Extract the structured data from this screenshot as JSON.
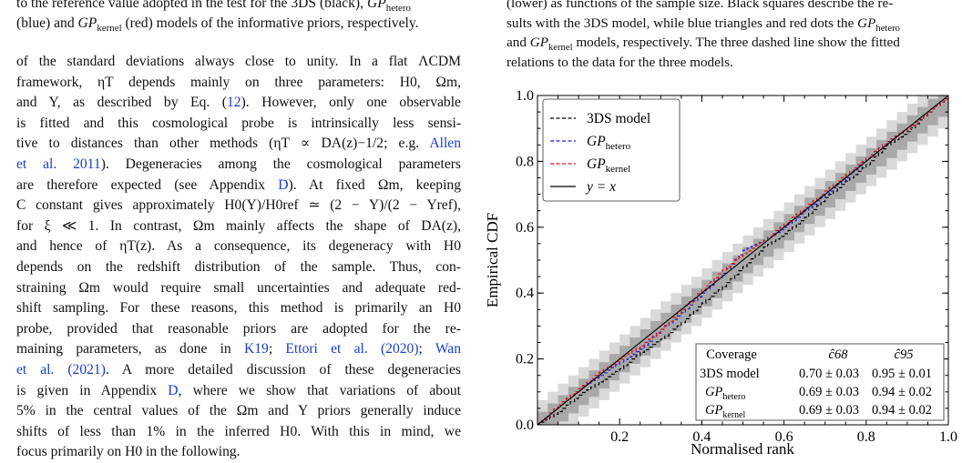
{
  "left_caption": {
    "line1": "to the reference value adopted in the test for the 3DS (black), ",
    "line1_gp": "GP",
    "line1_sub": "hetero",
    "line2_pre": "(blue) and ",
    "line2_gp": "GP",
    "line2_sub": "kernel",
    "line2_post": " (red) models of the informative priors, respectively."
  },
  "right_caption": {
    "line1": "(lower) as functions of the sample size. Black squares describe the re-",
    "line2_pre": "sults with the 3DS model, while blue triangles and red dots the ",
    "line2_gp": "GP",
    "line2_sub": "hetero",
    "line3_pre": "and ",
    "line3_gp": "GP",
    "line3_sub": "kernel",
    "line3_post": " models, respectively. The three dashed line show the fitted",
    "line4": "relations to the data for the three models."
  },
  "body": {
    "l1": "of the standard deviations always close to unity. In a flat ΛCDM",
    "l2": "framework, ηT depends mainly on three parameters: H0, Ωm,",
    "l3_pre": "and Y, as described by Eq. (",
    "l3_ref": "12",
    "l3_post": "). However, only one observable",
    "l4": "is fitted and this cosmological probe is intrinsically less sensi-",
    "l5_pre": "tive to distances than other methods (ηT ∝ DA(z)−1/2; e.g. ",
    "l5_ref": "Allen",
    "l6_ref": "et al. 2011",
    "l6_post": "). Degeneracies among the cosmological parameters",
    "l7_pre": "are therefore expected (see Appendix ",
    "l7_ref": "D",
    "l7_post": "). At fixed Ωm, keeping",
    "l8": "C constant gives approximately H0(Y)/H0ref ≃ (2 − Y)/(2 − Yref),",
    "l9": "for ξ ≪ 1. In contrast, Ωm mainly affects the shape of DA(z),",
    "l10": "and hence of ηT(z). As a consequence, its degeneracy with H0",
    "l11": "depends on the redshift distribution of the sample. Thus, con-",
    "l12": "straining Ωm would require small uncertainties and adequate red-",
    "l13": "shift sampling. For these reasons, this method is primarily an H0",
    "l14": "probe, provided that reasonable priors are adopted for the re-",
    "l15_pre": "maining parameters, as done in ",
    "l15_ref1": "K19",
    "l15_mid": "; ",
    "l15_ref2": "Ettori et al. (2020)",
    "l15_mid2": "; ",
    "l15_ref3": "Wan",
    "l16_ref": "et al. (2021)",
    "l16_post": ". A more detailed discussion of these degeneracies",
    "l17_pre": "is given in Appendix ",
    "l17_ref": "D",
    "l17_post": ", where we show that variations of about",
    "l18": "5% in the central values of the Ωm and Y priors generally induce",
    "l19": "shifts of less than 1% in the inferred H0. With this in mind, we",
    "l20": "focus primarily on H0 in the following."
  },
  "chart_data": {
    "type": "line",
    "xlabel": "Normalised rank",
    "ylabel": "Empirical CDF",
    "xlim": [
      0,
      1
    ],
    "ylim": [
      0,
      1
    ],
    "xticks": [
      "0.2",
      "0.4",
      "0.6",
      "0.8",
      "1.0"
    ],
    "yticks": [
      "0.0",
      "0.2",
      "0.4",
      "0.6",
      "0.8",
      "1.0"
    ],
    "legend_placement": "top-left",
    "series": [
      {
        "name": "3DS model",
        "color": "#000000",
        "style": "dashed",
        "x": [
          0.0,
          0.05,
          0.1,
          0.15,
          0.2,
          0.25,
          0.3,
          0.35,
          0.4,
          0.45,
          0.5,
          0.55,
          0.6,
          0.65,
          0.7,
          0.75,
          0.8,
          0.85,
          0.9,
          0.95,
          1.0
        ],
        "y": [
          0.0,
          0.04,
          0.09,
          0.13,
          0.17,
          0.22,
          0.26,
          0.31,
          0.37,
          0.42,
          0.48,
          0.54,
          0.58,
          0.63,
          0.69,
          0.74,
          0.79,
          0.85,
          0.89,
          0.95,
          1.0
        ]
      },
      {
        "name": "GPhetero",
        "color": "#1f1fd0",
        "style": "dashed",
        "x": [
          0.0,
          0.05,
          0.1,
          0.15,
          0.2,
          0.25,
          0.3,
          0.35,
          0.4,
          0.45,
          0.5,
          0.55,
          0.6,
          0.65,
          0.7,
          0.75,
          0.8,
          0.85,
          0.9,
          0.95,
          1.0
        ],
        "y": [
          0.0,
          0.06,
          0.11,
          0.15,
          0.19,
          0.23,
          0.29,
          0.34,
          0.4,
          0.46,
          0.53,
          0.56,
          0.6,
          0.65,
          0.7,
          0.75,
          0.81,
          0.86,
          0.9,
          0.95,
          1.0
        ]
      },
      {
        "name": "GPkernel",
        "color": "#e0101a",
        "style": "dashed",
        "x": [
          0.0,
          0.05,
          0.1,
          0.15,
          0.2,
          0.25,
          0.3,
          0.35,
          0.4,
          0.45,
          0.5,
          0.55,
          0.6,
          0.65,
          0.7,
          0.75,
          0.8,
          0.85,
          0.9,
          0.95,
          1.0
        ],
        "y": [
          0.0,
          0.06,
          0.11,
          0.16,
          0.2,
          0.24,
          0.29,
          0.35,
          0.41,
          0.47,
          0.52,
          0.56,
          0.61,
          0.66,
          0.71,
          0.76,
          0.81,
          0.86,
          0.9,
          0.95,
          1.0
        ]
      },
      {
        "name": "y = x",
        "color": "#000000",
        "style": "solid",
        "x": [
          0,
          1
        ],
        "y": [
          0,
          1
        ]
      }
    ],
    "bands": [
      {
        "level": "95%",
        "half_width": 0.075,
        "color": "#d9d9d9"
      },
      {
        "level": "68%",
        "half_width": 0.04,
        "color": "#a9a9a9"
      }
    ],
    "table": {
      "headers": [
        "Coverage",
        "ĉ68",
        "ĉ95"
      ],
      "rows": [
        [
          "3DS model",
          "0.70 ± 0.03",
          "0.95 ± 0.01"
        ],
        [
          "GPhetero",
          "0.69 ± 0.03",
          "0.94 ± 0.02"
        ],
        [
          "GPkernel",
          "0.69 ± 0.03",
          "0.94 ± 0.02"
        ]
      ]
    }
  }
}
